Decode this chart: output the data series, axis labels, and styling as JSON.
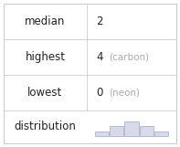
{
  "rows": [
    {
      "label": "median",
      "value": "2",
      "note": ""
    },
    {
      "label": "highest",
      "value": "4",
      "note": "(carbon)"
    },
    {
      "label": "lowest",
      "value": "0",
      "note": "(neon)"
    },
    {
      "label": "distribution",
      "value": "",
      "note": ""
    }
  ],
  "bar_heights": [
    1,
    2,
    3,
    2,
    1
  ],
  "bar_color": "#d8daea",
  "bar_edge_color": "#a0a8c0",
  "bg_color": "#ffffff",
  "border_color": "#cccccc",
  "label_fontsize": 8.5,
  "value_fontsize": 8.5,
  "note_fontsize": 7.5,
  "note_color": "#aaaaaa",
  "label_color": "#222222",
  "value_color": "#222222"
}
